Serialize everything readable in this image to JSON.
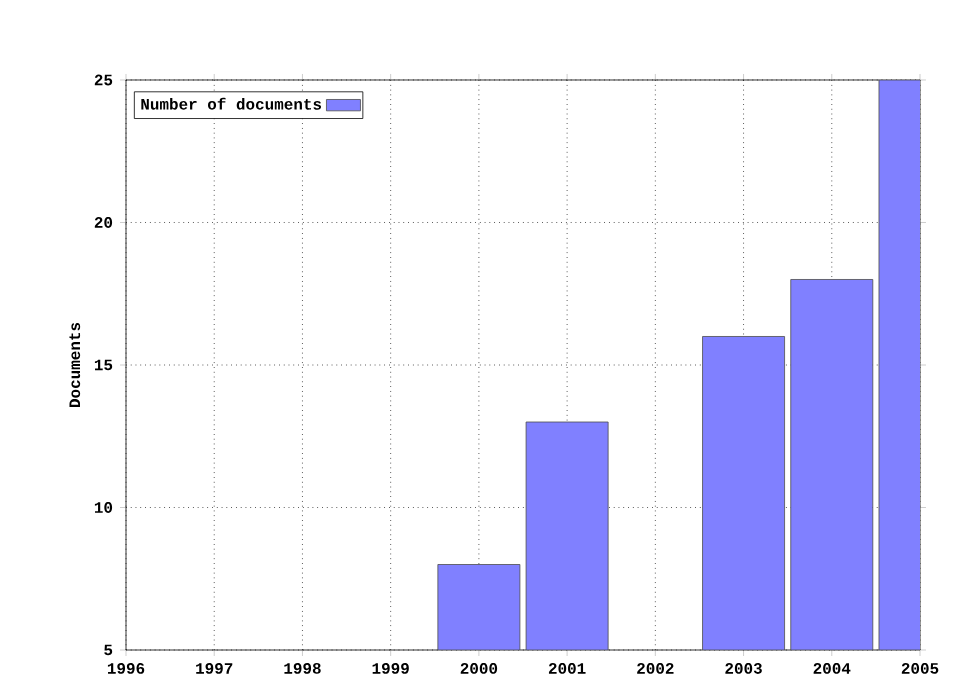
{
  "chart_data": {
    "type": "bar",
    "ylabel": "Documents",
    "x": [
      2000,
      2001,
      2003,
      2004,
      2005
    ],
    "series": [
      {
        "name": "Number of documents",
        "color": "#8080ff",
        "values": [
          8,
          13,
          16,
          18,
          25
        ]
      }
    ],
    "xlim": [
      1996,
      2005
    ],
    "xticks": [
      1996,
      1997,
      1998,
      1999,
      2000,
      2001,
      2002,
      2003,
      2004,
      2005
    ],
    "ylim": [
      5,
      25
    ],
    "yticks": [
      5,
      10,
      15,
      20,
      25
    ],
    "grid": true,
    "legend": "top left"
  }
}
